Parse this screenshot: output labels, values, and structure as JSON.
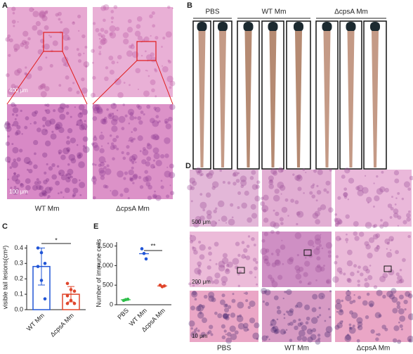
{
  "panel_labels": [
    "A",
    "B",
    "C",
    "D",
    "E"
  ],
  "panel_a": {
    "scale_bars": [
      "400 μm",
      "100 μm"
    ],
    "labels": [
      "WT Mm",
      "ΔcpsA Mm"
    ]
  },
  "panel_b": {
    "groups": [
      "PBS",
      "WT Mm",
      "ΔcpsA Mm"
    ]
  },
  "panel_d": {
    "scale_bars": [
      "500 μm",
      "200 μm",
      "10 μm"
    ],
    "groups": [
      "PBS",
      "WT Mm",
      "ΔcpsA Mm"
    ]
  },
  "chart_data": [
    {
      "type": "bar",
      "y_label": "visible tail lesions(cm²)",
      "categories": [
        "WT Mm",
        "ΔcpsA Mm"
      ],
      "values": [
        0.28,
        0.1
      ],
      "errors": [
        0.12,
        0.05
      ],
      "colors": [
        "#2155d6",
        "#e0452b"
      ],
      "points": [
        [
          0.4,
          0.37,
          0.3,
          0.28,
          0.19,
          0.07
        ],
        [
          0.17,
          0.13,
          0.12,
          0.09,
          0.06,
          0.04,
          0.04
        ]
      ],
      "significance": "*",
      "ylim": [
        0,
        0.42
      ],
      "yticks": [
        {
          "value": 0,
          "label": "0.0"
        },
        0.1,
        0.2,
        0.3,
        0.4
      ]
    },
    {
      "type": "scatter",
      "y_label": "Number of immune cells",
      "categories": [
        "PBS",
        "WT Mm",
        "ΔcpsA Mm"
      ],
      "points": [
        [
          110,
          130,
          140
        ],
        [
          1430,
          1310,
          1170
        ],
        [
          500,
          460,
          480
        ]
      ],
      "means": [
        127,
        1303,
        480
      ],
      "colors": [
        "#2fbf4a",
        "#2155d6",
        "#e0452b"
      ],
      "significance": "**",
      "ylim": [
        0,
        1600
      ],
      "yticks": [
        0,
        500,
        {
          "value": 1000,
          "label": "1,000"
        },
        {
          "value": 1500,
          "label": "1,500"
        }
      ]
    }
  ]
}
